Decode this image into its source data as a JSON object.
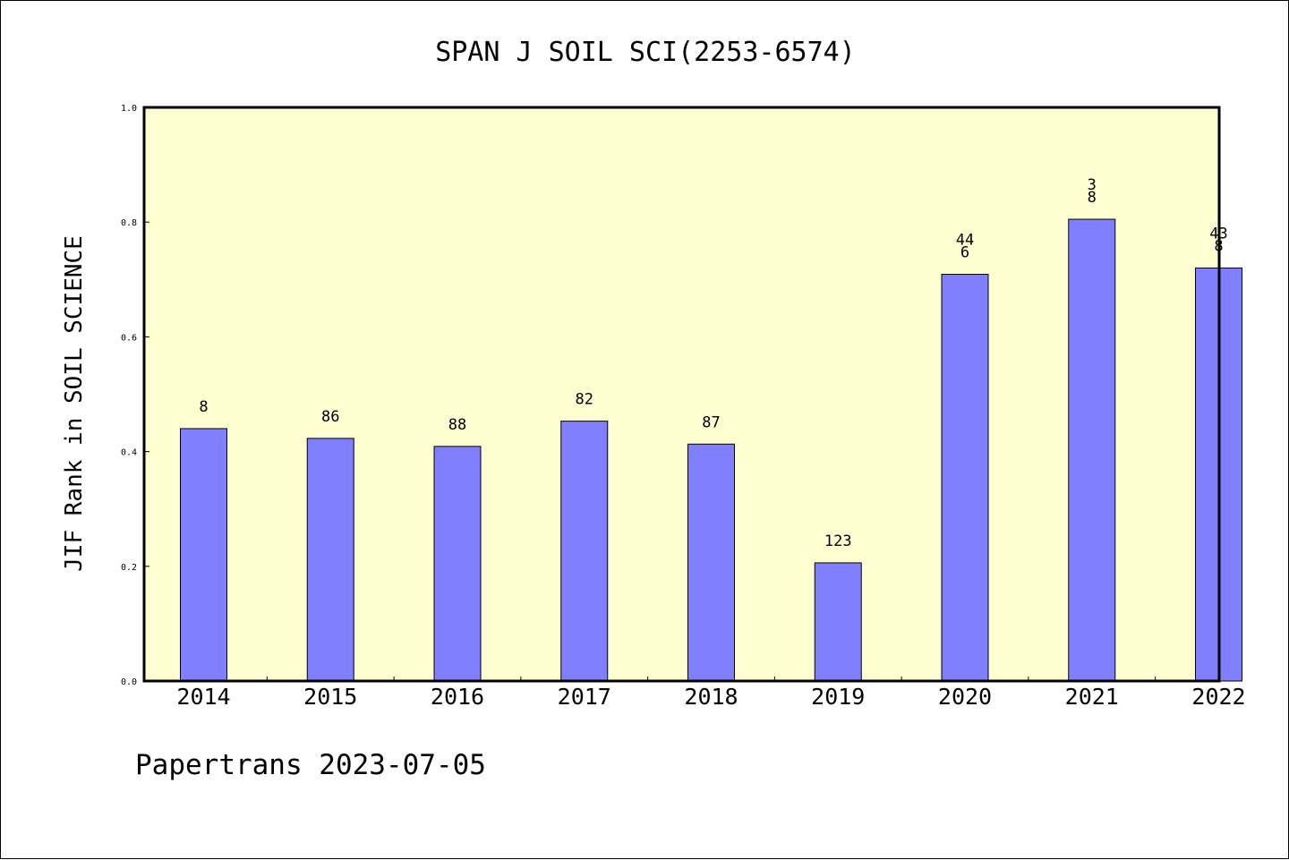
{
  "chart_data": {
    "type": "bar",
    "title": "SPAN J SOIL SCI(2253-6574)",
    "xlabel": "",
    "ylabel": "JIF Rank in SOIL SCIENCE",
    "ylim": [
      0.0,
      1.0
    ],
    "yticks": [
      "0.0",
      "0.2",
      "0.4",
      "0.6",
      "0.8",
      "1.0"
    ],
    "categories": [
      "2014",
      "2015",
      "2016",
      "2017",
      "2018",
      "2019",
      "2020",
      "2021",
      "2022"
    ],
    "values": [
      0.44,
      0.423,
      0.409,
      0.453,
      0.413,
      0.206,
      0.709,
      0.805,
      0.72
    ],
    "data_labels": [
      [
        "8"
      ],
      [
        "86"
      ],
      [
        "88"
      ],
      [
        "82"
      ],
      [
        "87"
      ],
      [
        "123"
      ],
      [
        "44",
        "6"
      ],
      [
        "3",
        "8"
      ],
      [
        "43",
        "8"
      ]
    ],
    "grid": false,
    "colors": {
      "plot_background": "#ffffd2",
      "bar_fill": "#8080ff",
      "bar_stroke": "#000000"
    }
  },
  "footer": {
    "text": "Papertrans 2023-07-05"
  }
}
